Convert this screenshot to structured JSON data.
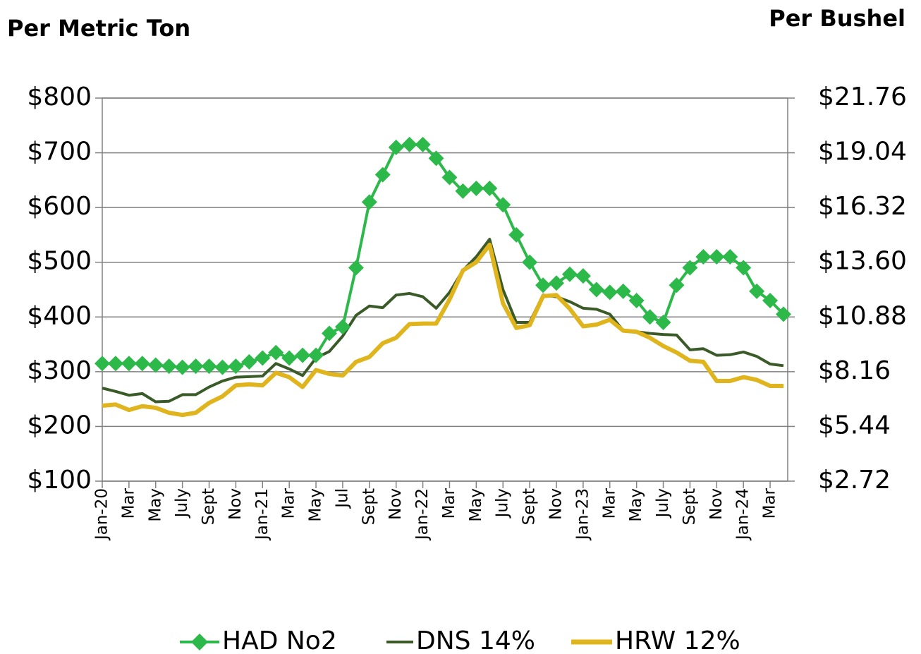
{
  "chart_data": {
    "type": "line",
    "left_title": "Per Metric Ton",
    "right_title": "Per Bushel",
    "categories": [
      "Jan-20",
      null,
      "Mar",
      null,
      "May",
      null,
      "July",
      null,
      "Sept",
      null,
      "Nov",
      null,
      "Jan-21",
      null,
      "Mar",
      null,
      "May",
      null,
      "Jul",
      null,
      "Sept",
      null,
      "Nov",
      null,
      "Jan-22",
      null,
      "Mar",
      null,
      "May",
      null,
      "July",
      null,
      "Sept",
      null,
      "Nov",
      null,
      "Jan-23",
      null,
      "Mar",
      null,
      "May",
      null,
      "July",
      null,
      "Sept",
      null,
      "Nov",
      null,
      "Jan-24",
      null,
      "Mar",
      null
    ],
    "series": [
      {
        "name": "HAD No2",
        "color": "#2db84a",
        "marker": "diamond",
        "values": [
          315,
          315,
          315,
          315,
          312,
          310,
          308,
          310,
          310,
          308,
          310,
          318,
          325,
          335,
          325,
          330,
          330,
          370,
          382,
          490,
          610,
          660,
          710,
          715,
          715,
          690,
          655,
          630,
          635,
          635,
          605,
          550,
          500,
          458,
          462,
          478,
          475,
          450,
          445,
          447,
          430,
          400,
          390,
          458,
          490,
          510,
          510,
          510,
          490,
          447,
          430,
          405
        ]
      },
      {
        "name": "DNS 14%",
        "color": "#3a5a28",
        "values": [
          270,
          264,
          257,
          260,
          245,
          246,
          258,
          258,
          272,
          283,
          290,
          291,
          292,
          315,
          305,
          293,
          325,
          337,
          365,
          403,
          420,
          417,
          440,
          443,
          437,
          416,
          445,
          485,
          510,
          542,
          450,
          390,
          390,
          440,
          437,
          428,
          416,
          414,
          405,
          375,
          373,
          370,
          368,
          367,
          340,
          342,
          330,
          331,
          336,
          328,
          314,
          311
        ]
      },
      {
        "name": "HRW 12%",
        "color": "#e0b41c",
        "values": [
          238,
          240,
          230,
          237,
          234,
          225,
          221,
          225,
          243,
          255,
          275,
          277,
          275,
          298,
          290,
          272,
          303,
          296,
          293,
          318,
          327,
          352,
          362,
          387,
          388,
          388,
          432,
          485,
          500,
          532,
          425,
          380,
          385,
          438,
          440,
          415,
          383,
          386,
          395,
          375,
          373,
          362,
          347,
          335,
          320,
          318,
          283,
          283,
          290,
          285,
          274,
          274
        ]
      }
    ],
    "ylim": [
      100,
      800
    ],
    "yticks": [
      {
        "value": 100,
        "label": "$100"
      },
      {
        "value": 200,
        "label": "$200"
      },
      {
        "value": 300,
        "label": "$300"
      },
      {
        "value": 400,
        "label": "$400"
      },
      {
        "value": 500,
        "label": "$500"
      },
      {
        "value": 600,
        "label": "$600"
      },
      {
        "value": 700,
        "label": "$700"
      },
      {
        "value": 800,
        "label": "$800"
      }
    ],
    "y2lim": [
      2.72,
      21.76
    ],
    "y2ticks": [
      {
        "value": 2.72,
        "label": "$2.72"
      },
      {
        "value": 5.44,
        "label": "$5.44"
      },
      {
        "value": 8.16,
        "label": "$8.16"
      },
      {
        "value": 10.88,
        "label": "$10.88"
      },
      {
        "value": 13.6,
        "label": "$13.60"
      },
      {
        "value": 16.32,
        "label": "$16.32"
      },
      {
        "value": 19.04,
        "label": "$19.04"
      },
      {
        "value": 21.76,
        "label": "$21.76"
      }
    ],
    "grid": true,
    "legend": "bottom"
  }
}
